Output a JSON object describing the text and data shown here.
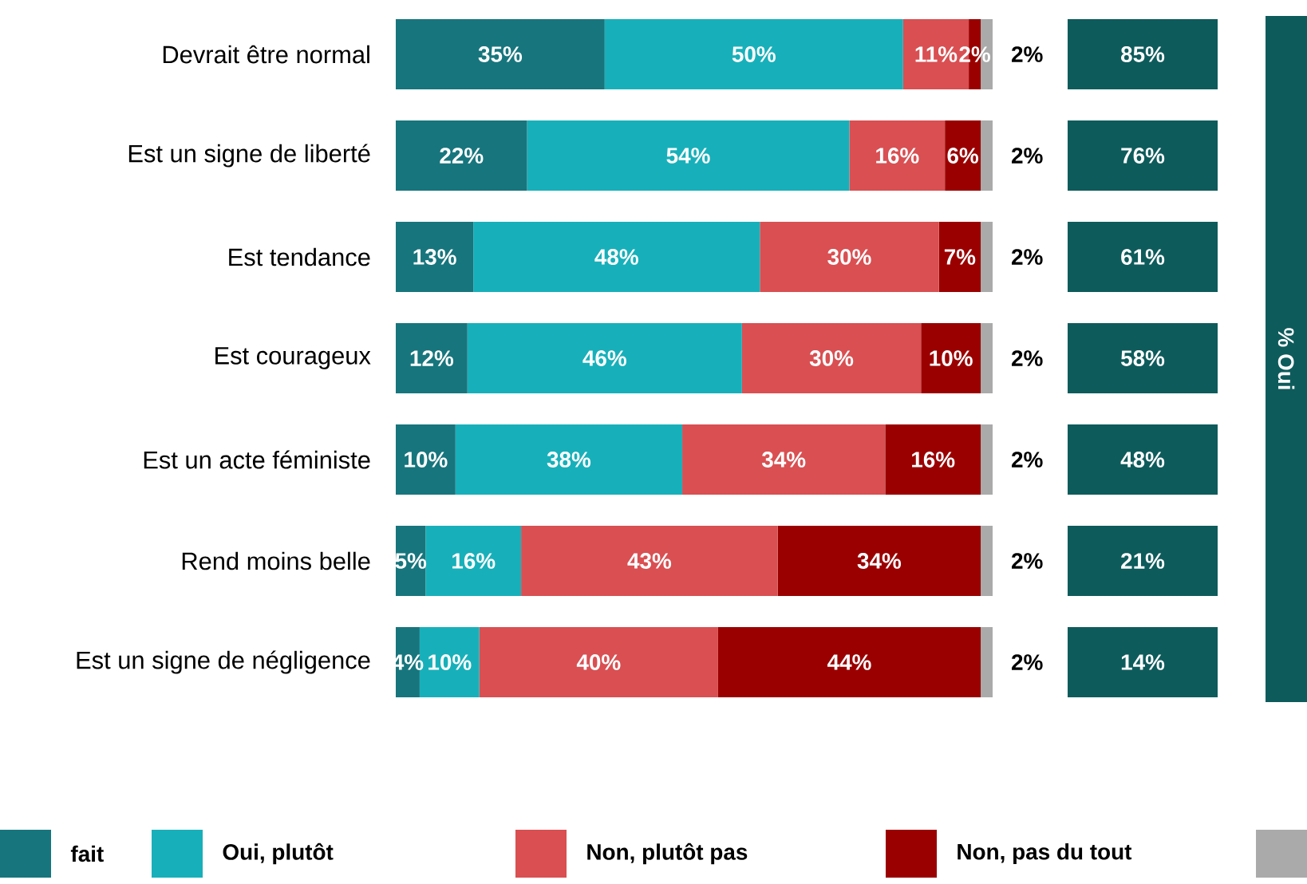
{
  "chart_data": [
    {
      "type": "bar",
      "orientation": "horizontal",
      "stacked": true,
      "legend": "bottom",
      "categories": [
        "Devrait être normal",
        "Est un signe de liberté",
        "Est tendance",
        "Est courageux",
        "Est un acte féministe",
        "Rend moins belle",
        "Est un signe de négligence"
      ],
      "series": [
        {
          "name": "fait",
          "color": "#17757d",
          "values": [
            35,
            22,
            13,
            12,
            10,
            5,
            4
          ],
          "value_labels": [
            "35%",
            "22%",
            "13%",
            "12%",
            "10%",
            "5%",
            "4%"
          ]
        },
        {
          "name": "Oui, plutôt",
          "color": "#17b0ba",
          "values": [
            50,
            54,
            48,
            46,
            38,
            16,
            10
          ],
          "value_labels": [
            "50%",
            "54%",
            "48%",
            "46%",
            "38%",
            "16%",
            "10%"
          ]
        },
        {
          "name": "Non, plutôt pas",
          "color": "#d94f52",
          "values": [
            11,
            16,
            30,
            30,
            34,
            43,
            40
          ],
          "value_labels": [
            "11%",
            "16%",
            "30%",
            "30%",
            "34%",
            "43%",
            "40%"
          ]
        },
        {
          "name": "Non, pas du tout",
          "color": "#9a0000",
          "values": [
            2,
            6,
            7,
            10,
            16,
            34,
            44
          ],
          "value_labels": [
            "2%",
            "6%",
            "7%",
            "10%",
            "16%",
            "34%",
            "44%"
          ]
        },
        {
          "color": "#aaaaaa",
          "values": [
            2,
            2,
            2,
            2,
            2,
            2,
            2
          ],
          "value_labels": [
            "2%",
            "2%",
            "2%",
            "2%",
            "2%",
            "2%",
            "2%"
          ]
        }
      ]
    },
    {
      "type": "other",
      "title": "% Oui",
      "annotations": [
        "85%",
        "76%",
        "61%",
        "58%",
        "48%",
        "21%",
        "14%"
      ]
    }
  ]
}
